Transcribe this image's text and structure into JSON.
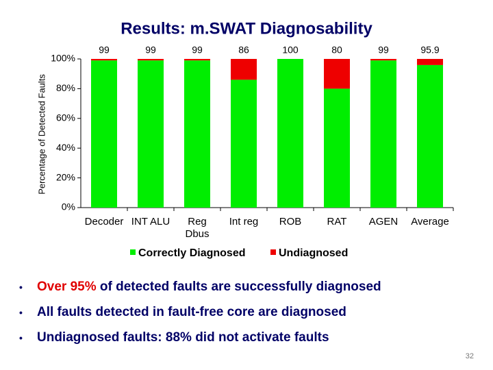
{
  "chart_data": {
    "type": "stacked_bar",
    "title": "Results: m.SWAT Diagnosability",
    "y_label": "Percentage of Detected Faults",
    "categories": [
      "Decoder",
      "INT ALU",
      "Reg Dbus",
      "Int reg",
      "ROB",
      "RAT",
      "AGEN",
      "Average"
    ],
    "series": [
      {
        "name": "Correctly Diagnosed",
        "color": "#00ee00",
        "values": [
          99,
          99,
          99,
          86,
          100,
          80,
          99,
          95.9
        ]
      },
      {
        "name": "Undiagnosed",
        "color": "#ee0000",
        "values": [
          1,
          1,
          1,
          14,
          0,
          20,
          1,
          4.1
        ]
      }
    ],
    "ylim": [
      0,
      100
    ],
    "yticks": [
      {
        "value": 0,
        "label": "0%"
      },
      {
        "value": 20,
        "label": "20%"
      },
      {
        "value": 40,
        "label": "40%"
      },
      {
        "value": 60,
        "label": "60%"
      },
      {
        "value": 80,
        "label": "80%"
      },
      {
        "value": 100,
        "label": "100%"
      }
    ],
    "grid": false
  },
  "bullets": [
    [
      "Over 95%",
      " of detected faults are successfully diagnosed"
    ],
    [
      "All faults detected in fault-free core are diagnosed"
    ],
    [
      "Undiagnosed faults: 88% did not activate faults"
    ]
  ],
  "page_number": "32"
}
